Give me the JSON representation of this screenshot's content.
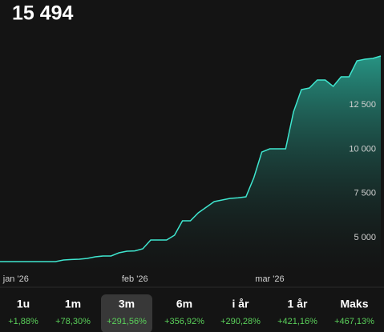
{
  "header": {
    "value": "15 494"
  },
  "chart_data": {
    "type": "line",
    "values": [
      3644,
      3644,
      3644,
      3644,
      3644,
      3644,
      3644,
      3644,
      3734,
      3760,
      3780,
      3825,
      3915,
      3960,
      3960,
      4141,
      4232,
      4250,
      4367,
      4864,
      4864,
      4864,
      5136,
      5949,
      5949,
      6400,
      6718,
      7034,
      7124,
      7215,
      7250,
      7305,
      8390,
      9836,
      10017,
      10017,
      10017,
      12100,
      13362,
      13452,
      13904,
      13904,
      13543,
      14085,
      14085,
      14989,
      15080,
      15125,
      15260
    ],
    "color": "#3fe6cf",
    "xlim": [
      0,
      48
    ],
    "xticks": [
      {
        "value": 2,
        "label": "jan '26"
      },
      {
        "value": 17,
        "label": "feb '26"
      },
      {
        "value": 34,
        "label": "mar '26"
      }
    ],
    "ylim": [
      3056,
      16616
    ],
    "yticks": [
      {
        "value": 5000,
        "label": "5 000"
      },
      {
        "value": 7500,
        "label": "7 500"
      },
      {
        "value": 10000,
        "label": "10 000"
      },
      {
        "value": 12500,
        "label": "12 500"
      }
    ]
  },
  "periods": [
    {
      "label": "1u",
      "change": "+1,88%"
    },
    {
      "label": "1m",
      "change": "+78,30%"
    },
    {
      "label": "3m",
      "change": "+291,56%"
    },
    {
      "label": "6m",
      "change": "+356,92%"
    },
    {
      "label": "i år",
      "change": "+290,28%"
    },
    {
      "label": "1 år",
      "change": "+421,16%"
    },
    {
      "label": "Maks",
      "change": "+467,13%"
    }
  ]
}
